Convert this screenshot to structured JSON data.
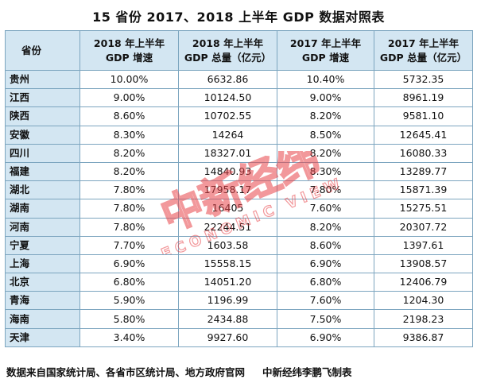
{
  "title": "15 省份 2017、2018 上半年 GDP 数据对照表",
  "headers": [
    [
      "省份"
    ],
    [
      "2018 年上半年",
      "GDP 增速"
    ],
    [
      "2018 年上半年",
      "GDP 总量（亿元）"
    ],
    [
      "2017 年上半年",
      "GDP 增速"
    ],
    [
      "2017 年上半年",
      "GDP 总量（亿元）"
    ]
  ],
  "rows": [
    [
      "贵州",
      "10.00%",
      "6632.86",
      "10.40%",
      "5732.35"
    ],
    [
      "江西",
      "9.00%",
      "10124.50",
      "9.00%",
      "8961.19"
    ],
    [
      "陕西",
      "8.60%",
      "10702.55",
      "8.20%",
      "9581.10"
    ],
    [
      "安徽",
      "8.30%",
      "14264",
      "8.50%",
      "12645.41"
    ],
    [
      "四川",
      "8.20%",
      "18327.01",
      "8.20%",
      "16080.33"
    ],
    [
      "福建",
      "8.20%",
      "14840.93",
      "8.30%",
      "13289.77"
    ],
    [
      "湖北",
      "7.80%",
      "17958.17",
      "7.80%",
      "15871.39"
    ],
    [
      "湖南",
      "7.80%",
      "16405",
      "7.60%",
      "15275.51"
    ],
    [
      "河南",
      "7.80%",
      "22244.51",
      "8.20%",
      "20307.72"
    ],
    [
      "宁夏",
      "7.70%",
      "1603.58",
      "8.60%",
      "1397.61"
    ],
    [
      "上海",
      "6.90%",
      "15558.15",
      "6.90%",
      "13908.57"
    ],
    [
      "北京",
      "6.80%",
      "14051.20",
      "6.80%",
      "12406.79"
    ],
    [
      "青海",
      "5.90%",
      "1196.99",
      "7.60%",
      "1204.30"
    ],
    [
      "海南",
      "5.80%",
      "2434.88",
      "7.50%",
      "2198.23"
    ],
    [
      "天津",
      "3.40%",
      "9927.60",
      "6.90%",
      "9386.87"
    ]
  ],
  "source": "数据来自国家统计局、各省市区统计局、地方政府官网",
  "credit": "中新经纬李鹏飞制表",
  "watermark": {
    "logo_text": "中新经纬",
    "logo_subtext": "ECONOMIC VIEW",
    "color": "#e8454a"
  }
}
